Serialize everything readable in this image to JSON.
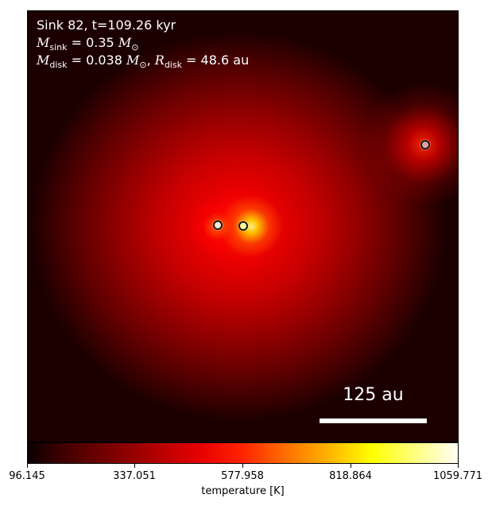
{
  "header": {
    "line1": "Sink 82, t=109.26 kyr",
    "line2_sym": "M",
    "line2_sub": "sink",
    "line2_rest": " = 0.35 ",
    "line2_unit_sym": "M",
    "line2_unit_sub": "⊙",
    "line3_sym": "M",
    "line3_sub": "disk",
    "line3_rest": " = 0.038 ",
    "line3_unit_sym": "M",
    "line3_unit_sub": "⊙",
    "line3_sep": ", ",
    "line3_sym2": "R",
    "line3_sub2": "disk",
    "line3_rest2": " = 48.6 au"
  },
  "scale_bar": {
    "label": "125 au"
  },
  "colorbar": {
    "label": "temperature [K]",
    "ticks": [
      "96.145",
      "337.051",
      "577.958",
      "818.864",
      "1059.771"
    ],
    "colormap": "hot"
  },
  "sinks": [
    {
      "name": "sink-left",
      "fill": "#ffe8d0"
    },
    {
      "name": "sink-right",
      "fill": "#ffffa0"
    },
    {
      "name": "sink-far",
      "fill": "#e0a0a0"
    }
  ]
}
